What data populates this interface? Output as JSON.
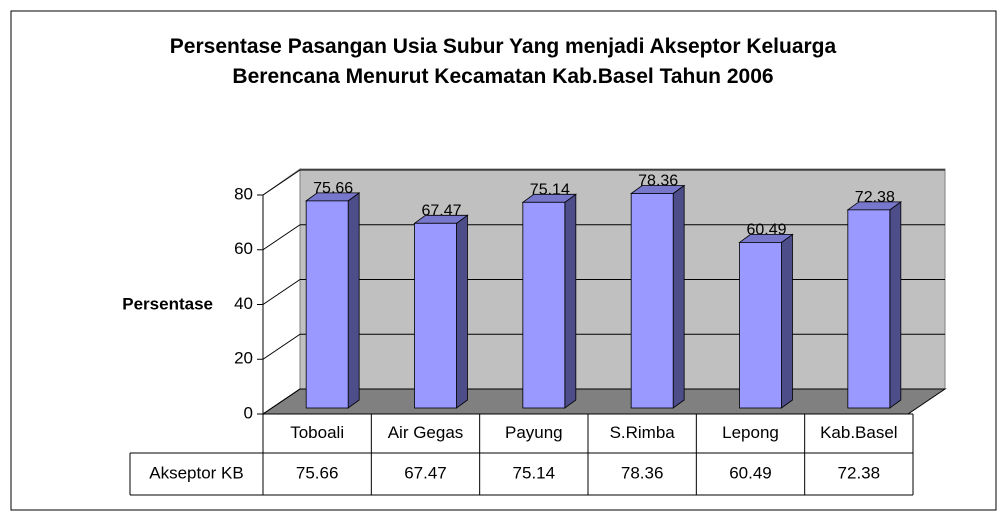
{
  "chart_data": {
    "type": "bar",
    "title": "Persentase Pasangan Usia Subur Yang menjadi Akseptor Keluarga Berencana Menurut Kecamatan Kab.Basel Tahun 2006",
    "y_label": "Persentase",
    "categories": [
      "Toboali",
      "Air Gegas",
      "Payung",
      "S.Rimba",
      "Lepong",
      "Kab.Basel"
    ],
    "series": [
      {
        "name": "Akseptor KB",
        "color": "#9999ff",
        "values": [
          75.66,
          67.47,
          75.14,
          78.36,
          60.49,
          72.38
        ]
      }
    ],
    "ylim": [
      0,
      80
    ],
    "yticks": [
      0,
      20,
      40,
      60,
      80
    ],
    "grid": true
  }
}
